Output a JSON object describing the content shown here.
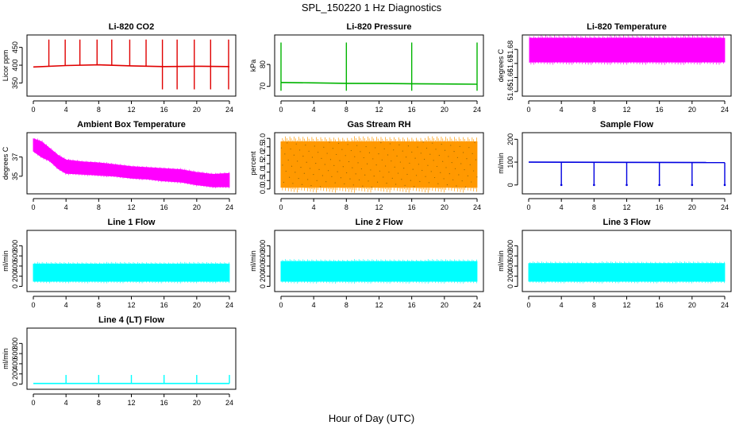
{
  "figure": {
    "title": "SPL_150220  1 Hz Diagnostics",
    "xlabel": "Hour of Day (UTC)"
  },
  "chart_data": [
    {
      "type": "line",
      "title": "Li-820 CO2",
      "ylabel": "Licor ppm",
      "color": "#e00000",
      "xlim": [
        0,
        24
      ],
      "xticks": [
        0,
        4,
        8,
        12,
        16,
        20,
        24
      ],
      "ylim": [
        322,
        476
      ],
      "yticks": [
        350,
        400,
        450
      ],
      "series": [
        {
          "x": [
            0,
            4,
            8,
            12,
            16,
            20,
            24
          ],
          "values": [
            395,
            399,
            401,
            398,
            396,
            397,
            396
          ]
        }
      ],
      "spikes": {
        "hours": [
          1.9,
          3.9,
          5.7,
          7.8,
          9.6,
          11.8,
          13.8,
          15.8,
          17.6,
          19.7,
          21.7,
          23.9
        ],
        "peak": 472,
        "dip": 332
      }
    },
    {
      "type": "line",
      "title": "Li-820 Pressure",
      "ylabel": "kPa",
      "color": "#00b400",
      "xlim": [
        0,
        24
      ],
      "xticks": [
        0,
        4,
        8,
        12,
        16,
        20,
        24
      ],
      "ylim": [
        67,
        92
      ],
      "yticks": [
        70,
        80
      ],
      "series": [
        {
          "x": [
            0,
            4,
            8,
            12,
            16,
            20,
            24
          ],
          "values": [
            71.8,
            71.6,
            71.4,
            71.3,
            71.2,
            71.1,
            71.0
          ]
        }
      ],
      "spikes": {
        "hours": [
          0,
          8,
          16,
          24
        ],
        "peak": 90,
        "dip": 68
      }
    },
    {
      "type": "area",
      "title": "Li-820 Temperature",
      "ylabel": "degrees C",
      "color": "#ff00ff",
      "xlim": [
        0,
        24
      ],
      "xticks": [
        0,
        4,
        8,
        12,
        16,
        20,
        24
      ],
      "ylim": [
        51.649,
        51.688
      ],
      "yticks": [
        51.65,
        51.66,
        51.67,
        51.68
      ],
      "series": [
        {
          "x": [
            0.1,
            24
          ],
          "low": [
            51.671,
            51.671
          ],
          "high": [
            51.688,
            51.688
          ]
        }
      ]
    },
    {
      "type": "area",
      "title": "Ambient Box Temperature",
      "ylabel": "degrees C",
      "color": "#ff00ff",
      "xlim": [
        0,
        24
      ],
      "xticks": [
        0,
        4,
        8,
        12,
        16,
        20,
        24
      ],
      "ylim": [
        33.5,
        39.2
      ],
      "yticks": [
        35,
        37
      ],
      "series": [
        {
          "x": [
            0,
            1,
            2,
            3,
            4,
            6,
            8,
            10,
            12,
            14,
            16,
            18,
            20,
            22,
            24
          ],
          "low": [
            37.6,
            37.0,
            36.6,
            35.8,
            35.3,
            35.2,
            35.1,
            35.0,
            34.8,
            34.7,
            34.5,
            34.4,
            34.1,
            33.9,
            33.9
          ],
          "high": [
            38.9,
            38.6,
            37.9,
            37.2,
            36.7,
            36.5,
            36.4,
            36.2,
            36.0,
            35.9,
            35.8,
            35.7,
            35.4,
            35.2,
            35.3
          ]
        }
      ]
    },
    {
      "type": "area",
      "title": "Gas Stream RH",
      "ylabel": "percent",
      "color": "#ff9900",
      "xlim": [
        0,
        24
      ],
      "xticks": [
        0,
        4,
        8,
        12,
        16,
        20,
        24
      ],
      "ylim": [
        -0.1,
        3.15
      ],
      "yticks": [
        0.0,
        0.5,
        1.0,
        1.5,
        2.0,
        2.5,
        3.0
      ],
      "series": [
        {
          "x": [
            0,
            24
          ],
          "low": [
            0.1,
            0.1
          ],
          "high": [
            2.8,
            2.8
          ]
        }
      ]
    },
    {
      "type": "line",
      "title": "Sample Flow",
      "ylabel": "ml/min",
      "color": "#0000e0",
      "xlim": [
        0,
        24
      ],
      "xticks": [
        0,
        4,
        8,
        12,
        16,
        20,
        24
      ],
      "ylim": [
        -25,
        215
      ],
      "yticks": [
        0,
        100,
        200
      ],
      "series": [
        {
          "x": [
            0,
            24
          ],
          "values": [
            100,
            98
          ]
        }
      ],
      "spikes": {
        "hours": [
          4,
          8,
          12,
          16,
          20,
          24
        ],
        "dip": 0
      }
    },
    {
      "type": "area",
      "title": "Line 1 Flow",
      "ylabel": "ml/min",
      "color": "#00ffff",
      "xlim": [
        0,
        24
      ],
      "xticks": [
        0,
        4,
        8,
        12,
        16,
        20,
        24
      ],
      "ylim": [
        -40,
        1040
      ],
      "yticks": [
        0,
        200,
        400,
        600,
        800
      ],
      "series": [
        {
          "x": [
            0,
            24
          ],
          "low": [
            100,
            100
          ],
          "high": [
            440,
            440
          ]
        }
      ]
    },
    {
      "type": "area",
      "title": "Line 2 Flow",
      "ylabel": "ml/min",
      "color": "#00ffff",
      "xlim": [
        0,
        24
      ],
      "xticks": [
        0,
        4,
        8,
        12,
        16,
        20,
        24
      ],
      "ylim": [
        -40,
        1040
      ],
      "yticks": [
        0,
        200,
        400,
        600,
        800
      ],
      "series": [
        {
          "x": [
            0,
            24
          ],
          "low": [
            100,
            100
          ],
          "high": [
            490,
            490
          ]
        }
      ]
    },
    {
      "type": "area",
      "title": "Line 3 Flow",
      "ylabel": "ml/min",
      "color": "#00ffff",
      "xlim": [
        0,
        24
      ],
      "xticks": [
        0,
        4,
        8,
        12,
        16,
        20,
        24
      ],
      "ylim": [
        -40,
        1040
      ],
      "yticks": [
        0,
        200,
        400,
        600,
        800
      ],
      "series": [
        {
          "x": [
            0,
            24
          ],
          "low": [
            100,
            100
          ],
          "high": [
            450,
            450
          ]
        }
      ]
    },
    {
      "type": "line",
      "title": "Line 4 (LT) Flow",
      "ylabel": "ml/min",
      "color": "#00ffff",
      "xlim": [
        0,
        24
      ],
      "xticks": [
        0,
        4,
        8,
        12,
        16,
        20,
        24
      ],
      "ylim": [
        -40,
        1040
      ],
      "yticks": [
        0,
        200,
        400,
        600,
        800
      ],
      "series": [
        {
          "x": [
            0,
            24
          ],
          "values": [
            12,
            12
          ]
        }
      ],
      "spikes": {
        "hours": [
          4,
          8,
          12,
          16,
          20,
          24
        ],
        "peak": 180
      }
    }
  ]
}
